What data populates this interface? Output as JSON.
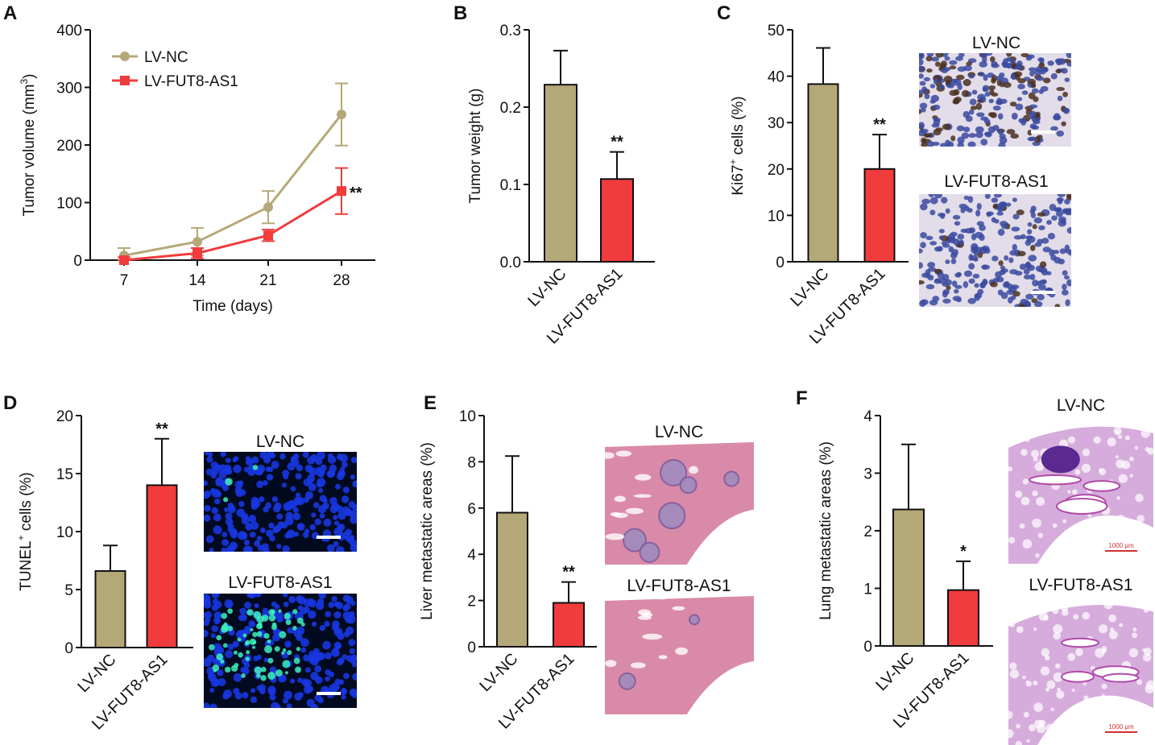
{
  "colors": {
    "nc": "#b5a878",
    "fut8": "#f03c3c",
    "axis": "#111111",
    "ihc_bg": "#e2dde8",
    "ihc_nuc": "#3b4aa0",
    "ihc_brown": "#4b3020",
    "tunel_bg": "#020a20",
    "tunel_nuc": "#1836e0",
    "tunel_green": "#3cf0c0",
    "he_liver": "#d98aa8",
    "he_lung": "#c890d0"
  },
  "chart_data": [
    {
      "panel": "A",
      "type": "line",
      "title": "",
      "ylabel": "Tumor volume (mm",
      "ylabel_sup": "3",
      "ylabel_end": ")",
      "xlabel": "Time (days)",
      "ylim": [
        0,
        400
      ],
      "yticks": [
        "0",
        "100",
        "200",
        "300",
        "400"
      ],
      "x": [
        7,
        14,
        21,
        28
      ],
      "xticks": [
        "7",
        "14",
        "21",
        "28"
      ],
      "series": [
        {
          "name": "LV-NC",
          "marker": "circle",
          "values": [
            8,
            32,
            92,
            253
          ],
          "err": [
            13,
            24,
            28,
            54
          ]
        },
        {
          "name": "LV-FUT8-AS1",
          "marker": "square",
          "values": [
            0,
            12,
            43,
            120
          ],
          "err": [
            5,
            9,
            10,
            40
          ]
        }
      ],
      "annotation": "**",
      "legend": "top-left"
    },
    {
      "panel": "B",
      "type": "bar",
      "ylabel": "Tumor weight (g)",
      "ylim": [
        0,
        0.3
      ],
      "yticks": [
        "0.0",
        "0.1",
        "0.2",
        "0.3"
      ],
      "categories": [
        "LV-NC",
        "LV-FUT8-AS1"
      ],
      "values": [
        0.229,
        0.107
      ],
      "err": [
        0.044,
        0.035
      ],
      "stars": [
        "",
        "**"
      ]
    },
    {
      "panel": "C",
      "type": "bar",
      "ylabel": "Ki67",
      "ylabel_sup": "+",
      "ylabel_end": " cells (%)",
      "ylim": [
        0,
        50
      ],
      "yticks": [
        "0",
        "10",
        "20",
        "30",
        "40",
        "50"
      ],
      "categories": [
        "LV-NC",
        "LV-FUT8-AS1"
      ],
      "values": [
        38.3,
        20.0
      ],
      "err": [
        7.8,
        7.4
      ],
      "stars": [
        "",
        "**"
      ],
      "image_captions": [
        "LV-NC",
        "LV-FUT8-AS1"
      ]
    },
    {
      "panel": "D",
      "type": "bar",
      "ylabel": "TUNEL",
      "ylabel_sup": "+",
      "ylabel_end": " cells (%)",
      "ylim": [
        0,
        20
      ],
      "yticks": [
        "0",
        "5",
        "10",
        "15",
        "20"
      ],
      "categories": [
        "LV-NC",
        "LV-FUT8-AS1"
      ],
      "values": [
        6.6,
        14.0
      ],
      "err": [
        2.2,
        4.0
      ],
      "stars": [
        "",
        "**"
      ],
      "image_captions": [
        "LV-NC",
        "LV-FUT8-AS1"
      ]
    },
    {
      "panel": "E",
      "type": "bar",
      "ylabel": "Liver metastatic areas (%)",
      "ylim": [
        0,
        10
      ],
      "yticks": [
        "0",
        "2",
        "4",
        "6",
        "8",
        "10"
      ],
      "categories": [
        "LV-NC",
        "LV-FUT8-AS1"
      ],
      "values": [
        5.8,
        1.9
      ],
      "err": [
        2.45,
        0.9
      ],
      "stars": [
        "",
        "**"
      ],
      "image_captions": [
        "LV-NC",
        "LV-FUT8-AS1"
      ]
    },
    {
      "panel": "F",
      "type": "bar",
      "ylabel": "Lung metastatic areas (%)",
      "ylim": [
        0,
        4
      ],
      "yticks": [
        "0",
        "1",
        "2",
        "3",
        "4"
      ],
      "categories": [
        "LV-NC",
        "LV-FUT8-AS1"
      ],
      "values": [
        2.37,
        0.97
      ],
      "err": [
        1.13,
        0.5
      ],
      "stars": [
        "",
        "*"
      ],
      "image_captions": [
        "LV-NC",
        "LV-FUT8-AS1"
      ],
      "scale_label": "1000 µm"
    }
  ]
}
